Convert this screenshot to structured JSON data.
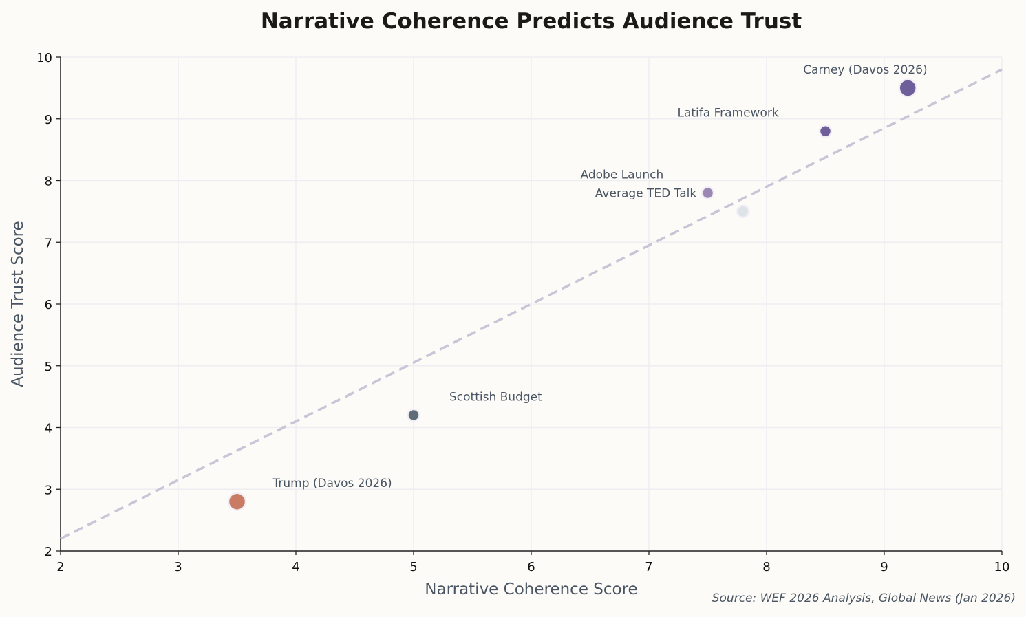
{
  "chart_data": {
    "type": "scatter",
    "title": "Narrative Coherence Predicts Audience Trust",
    "xlabel": "Narrative Coherence Score",
    "ylabel": "Audience Trust Score",
    "xlim": [
      2,
      10
    ],
    "ylim": [
      2,
      10
    ],
    "xticks": [
      "2",
      "3",
      "4",
      "5",
      "6",
      "7",
      "8",
      "9",
      "10"
    ],
    "yticks": [
      "2",
      "3",
      "4",
      "5",
      "6",
      "7",
      "8",
      "9",
      "10"
    ],
    "grid": true,
    "points": [
      {
        "label": "Carney (Davos 2026)",
        "x": 9.2,
        "y": 9.5,
        "size": 2,
        "color": "#6e5f9a"
      },
      {
        "label": "Latifa Framework",
        "x": 8.5,
        "y": 8.8,
        "size": 1,
        "color": "#6e5f9a"
      },
      {
        "label": "Adobe Launch",
        "x": 7.5,
        "y": 7.8,
        "size": 1,
        "color": "#9a87b3"
      },
      {
        "label": "Average TED Talk",
        "x": 7.8,
        "y": 7.5,
        "size": 1,
        "color": "#dde3e6"
      },
      {
        "label": "Scottish Budget",
        "x": 5.0,
        "y": 4.2,
        "size": 1,
        "color": "#5f6b76"
      },
      {
        "label": "Trump (Davos 2026)",
        "x": 3.5,
        "y": 2.8,
        "size": 2,
        "color": "#c97b63"
      }
    ],
    "trendline": {
      "slope": 0.95,
      "intercept": 0.3,
      "style": "dashed",
      "color": "#c9c4d6"
    },
    "source": "Source: WEF 2026 Analysis, Global News (Jan 2026)"
  }
}
